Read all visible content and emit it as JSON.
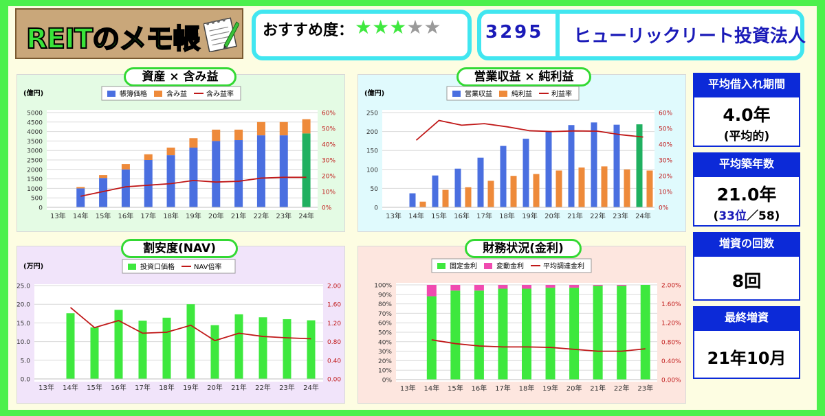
{
  "header": {
    "logo_text": "REITのメモ帳",
    "recommend_label": "おすすめ度：",
    "stars_filled": "★★★",
    "stars_empty": "★★",
    "rating": 3,
    "code": "3295",
    "fund_name": "ヒューリックリート投資法人"
  },
  "side": {
    "borrow_label": "平均借入れ期間",
    "borrow_value": "4.0年",
    "borrow_note": "(平均的)",
    "age_label": "平均築年数",
    "age_value": "21.0年",
    "age_rank_open": "(",
    "age_rank": "33位",
    "age_rank_total": "／58)",
    "increase_label": "増資の回数",
    "increase_value": "8回",
    "last_label": "最終増資",
    "last_value": "21年10月"
  },
  "colors": {
    "green": "#3ee83e",
    "highlight": "#20b060",
    "blue": "#4a6fe0",
    "orange": "#ee8a3a",
    "pink": "#f04ab0",
    "red": "#c01818"
  },
  "chart_data": [
    {
      "id": "assets",
      "type": "bar",
      "title": "資産 × 含み益",
      "unit": "(億円)",
      "categories": [
        "13年",
        "14年",
        "15年",
        "16年",
        "17年",
        "18年",
        "19年",
        "20年",
        "21年",
        "22年",
        "23年",
        "24年"
      ],
      "ylim": [
        0,
        5000
      ],
      "yticks": [
        "0",
        "500",
        "1000",
        "1500",
        "2000",
        "2500",
        "3000",
        "3500",
        "4000",
        "4500",
        "5000"
      ],
      "y2lim": [
        0,
        60
      ],
      "y2ticks": [
        "0%",
        "10%",
        "20%",
        "30%",
        "40%",
        "50%",
        "60%"
      ],
      "stacked": true,
      "legend": [
        "帳簿価格",
        "含み益",
        "含み益率"
      ],
      "series": [
        {
          "name": "帳簿価格",
          "kind": "bar",
          "values": [
            null,
            1000,
            1550,
            2000,
            2500,
            2750,
            3150,
            3500,
            3550,
            3800,
            3800,
            3900
          ]
        },
        {
          "name": "含み益",
          "kind": "bar",
          "values": [
            null,
            70,
            150,
            280,
            300,
            400,
            500,
            600,
            550,
            700,
            700,
            750
          ]
        },
        {
          "name": "含み益率",
          "kind": "line",
          "axis": "right",
          "values": [
            null,
            7,
            10,
            13,
            14,
            15,
            17,
            16,
            16.5,
            18.5,
            19,
            19
          ]
        }
      ]
    },
    {
      "id": "revenue",
      "type": "bar",
      "title": "営業収益 × 純利益",
      "unit": "(億円)",
      "categories": [
        "13年",
        "14年",
        "15年",
        "16年",
        "17年",
        "18年",
        "19年",
        "20年",
        "21年",
        "22年",
        "23年",
        "24年"
      ],
      "ylim": [
        0,
        250
      ],
      "yticks": [
        "0",
        "50",
        "100",
        "150",
        "200",
        "250"
      ],
      "y2lim": [
        0,
        60
      ],
      "y2ticks": [
        "0%",
        "10%",
        "20%",
        "30%",
        "40%",
        "50%",
        "60%"
      ],
      "stacked": false,
      "legend": [
        "営業収益",
        "純利益",
        "利益率"
      ],
      "series": [
        {
          "name": "営業収益",
          "kind": "bar",
          "values": [
            null,
            37,
            84,
            102,
            131,
            162,
            181,
            201,
            217,
            224,
            218,
            219
          ]
        },
        {
          "name": "純利益",
          "kind": "bar",
          "values": [
            null,
            15,
            46,
            53,
            70,
            83,
            88,
            97,
            105,
            108,
            100,
            97
          ]
        },
        {
          "name": "利益率",
          "kind": "line",
          "axis": "right",
          "values": [
            null,
            42.5,
            55,
            52,
            53,
            51,
            48.5,
            48,
            48.4,
            48.2,
            46,
            44.5
          ]
        }
      ]
    },
    {
      "id": "nav",
      "type": "bar",
      "title": "割安度(NAV)",
      "unit": "(万円)",
      "categories": [
        "13年",
        "14年",
        "15年",
        "16年",
        "17年",
        "18年",
        "19年",
        "20年",
        "21年",
        "22年",
        "23年",
        "24年"
      ],
      "ylim": [
        0,
        25
      ],
      "yticks": [
        "0.0",
        "5.0",
        "10.0",
        "15.0",
        "20.0",
        "25.0"
      ],
      "y2lim": [
        0,
        2
      ],
      "y2ticks": [
        "0.00",
        "0.40",
        "0.80",
        "1.20",
        "1.60",
        "2.00"
      ],
      "stacked": false,
      "legend": [
        "投資口価格",
        "NAV倍率"
      ],
      "series": [
        {
          "name": "投資口価格",
          "kind": "bar",
          "values": [
            null,
            17.6,
            13.8,
            18.5,
            15.6,
            16.4,
            20,
            14.4,
            17.3,
            16.5,
            16,
            15.7
          ]
        },
        {
          "name": "NAV倍率",
          "kind": "line",
          "axis": "right",
          "values": [
            null,
            1.53,
            1.1,
            1.25,
            0.98,
            1.0,
            1.15,
            0.82,
            0.98,
            0.91,
            0.88,
            0.86
          ]
        }
      ]
    },
    {
      "id": "finance",
      "type": "bar",
      "title": "財務状況(金利)",
      "unit": "",
      "categories": [
        "13年",
        "14年",
        "15年",
        "16年",
        "17年",
        "18年",
        "19年",
        "20年",
        "21年",
        "22年",
        "23年"
      ],
      "ylim": [
        0,
        100
      ],
      "yticks": [
        "0%",
        "10%",
        "20%",
        "30%",
        "40%",
        "50%",
        "60%",
        "70%",
        "80%",
        "90%",
        "100%"
      ],
      "y2lim": [
        0,
        2
      ],
      "y2ticks": [
        "0.00%",
        "0.40%",
        "0.80%",
        "1.20%",
        "1.60%",
        "2.00%"
      ],
      "stacked": true,
      "legend": [
        "固定金利",
        "変動金利",
        "平均調達金利"
      ],
      "series": [
        {
          "name": "固定金利",
          "kind": "bar",
          "values": [
            null,
            88,
            94,
            94,
            96,
            96,
            97,
            97,
            99,
            99,
            100
          ]
        },
        {
          "name": "変動金利",
          "kind": "bar",
          "values": [
            null,
            12,
            6,
            6,
            4,
            4,
            3,
            3,
            1,
            1,
            0
          ]
        },
        {
          "name": "平均調達金利",
          "kind": "line",
          "axis": "right",
          "values": [
            null,
            0.84,
            0.76,
            0.71,
            0.69,
            0.69,
            0.68,
            0.64,
            0.6,
            0.6,
            0.65
          ]
        }
      ]
    }
  ]
}
